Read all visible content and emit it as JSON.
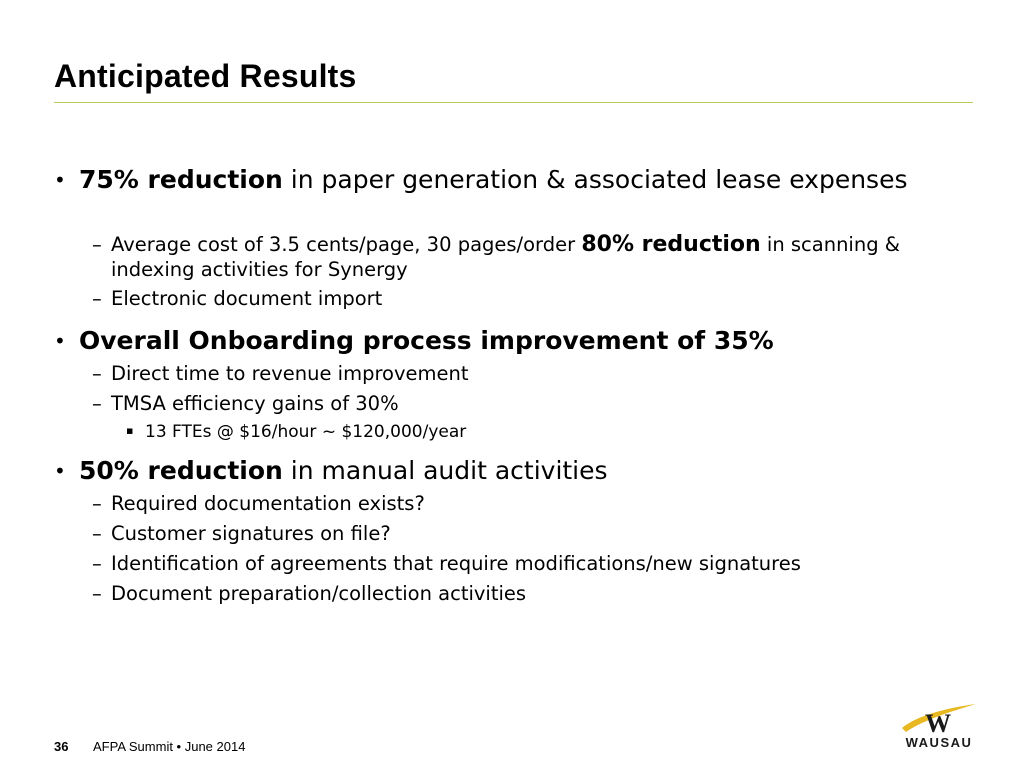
{
  "slide": {
    "title": "Anticipated Results",
    "bullets": [
      {
        "bold": "75% reduction",
        "text": " in paper generation & associated lease expenses",
        "subs": [
          {
            "text": "Average cost of 3.5 cents/page, 30 pages/order ",
            "bold": "80% reduction",
            "after": " in scanning & indexing activities for Synergy"
          },
          {
            "text": "Electronic document import"
          }
        ]
      },
      {
        "bold": "Overall Onboarding process improvement of 35%",
        "subs": [
          {
            "text": "Direct time to revenue improvement"
          },
          {
            "text": "TMSA efficiency gains of 30%",
            "subs": [
              {
                "text": "13 FTEs @ $16/hour ~ $120,000/year"
              }
            ]
          }
        ]
      },
      {
        "bold": "50% reduction",
        "text": " in manual audit activities",
        "subs": [
          {
            "text": "Required documentation exists?"
          },
          {
            "text": "Customer signatures on file?"
          },
          {
            "text": "Identification of agreements that require modifications/new signatures"
          },
          {
            "text": "Document preparation/collection activities"
          }
        ]
      }
    ]
  },
  "markers": {
    "l1": "•",
    "l2": "–",
    "l3": "▪"
  },
  "footer": {
    "page_number": "36",
    "text": "AFPA Summit • June 2014"
  },
  "logo": {
    "text": "WAUSAU",
    "letter": "W"
  },
  "colors": {
    "rule": "#b5cc5a",
    "logo_swoosh": "#e8b820",
    "logo_dark": "#1a1a1a"
  }
}
